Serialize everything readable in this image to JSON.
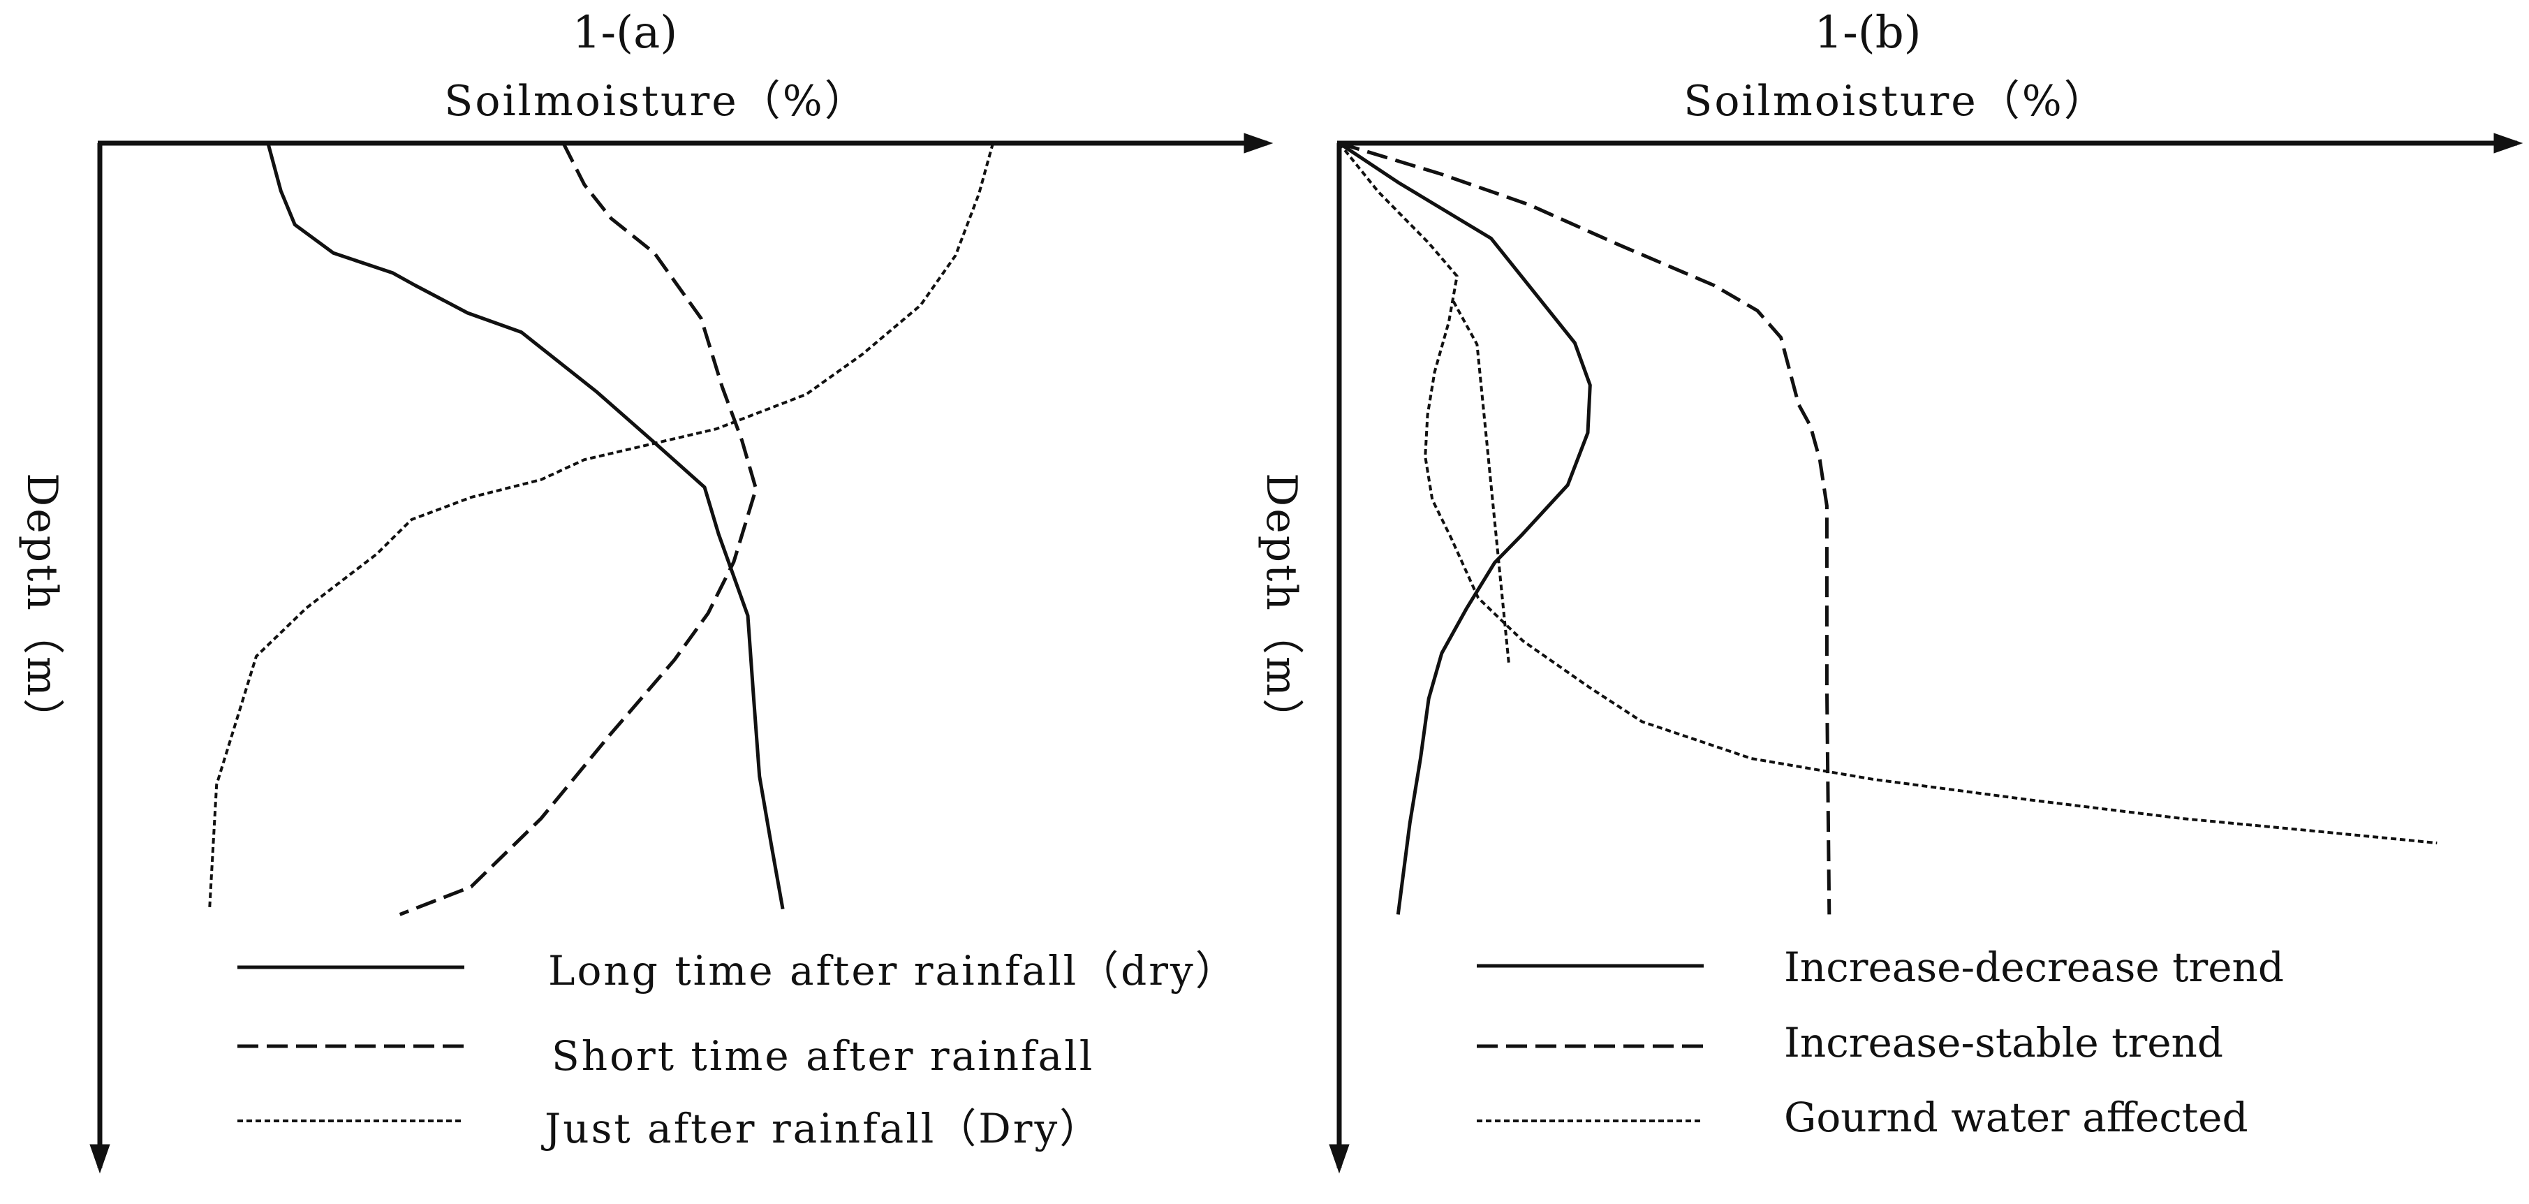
{
  "chart_data": [
    {
      "panel_label": "1-(a)",
      "type": "line",
      "title": "1-(a)",
      "xlabel": "Soilmoisture（%）",
      "ylabel": "Depth（m）",
      "x_axis_position": "top",
      "y_axis_direction": "downward",
      "xlim": [
        0,
        100
      ],
      "ylim": [
        0,
        100
      ],
      "grid": false,
      "legend_position": "bottom",
      "series": [
        {
          "name": "Long time after rainfall（dry）",
          "style": "solid",
          "points": [
            [
              14.4,
              0
            ],
            [
              15.5,
              6.2
            ],
            [
              16.7,
              10.6
            ],
            [
              20,
              14.3
            ],
            [
              25.1,
              16.9
            ],
            [
              27,
              18.5
            ],
            [
              31.5,
              22.1
            ],
            [
              36.1,
              24.6
            ],
            [
              42.5,
              32.3
            ],
            [
              47.3,
              38.7
            ],
            [
              51.8,
              44.8
            ],
            [
              53,
              50.9
            ],
            [
              55.5,
              61.5
            ],
            [
              56,
              72.1
            ],
            [
              56.5,
              82.4
            ],
            [
              57.5,
              91.2
            ],
            [
              58.5,
              99.7
            ]
          ]
        },
        {
          "name": "Short time after rainfall",
          "style": "dashed",
          "points": [
            [
              39.7,
              0
            ],
            [
              41.5,
              5.4
            ],
            [
              43.8,
              9.8
            ],
            [
              47.5,
              14.3
            ],
            [
              51.5,
              22.8
            ],
            [
              53.3,
              31.7
            ],
            [
              55,
              38.7
            ],
            [
              56.2,
              45
            ],
            [
              54.3,
              54.5
            ],
            [
              52.1,
              61.2
            ],
            [
              49.2,
              67.3
            ],
            [
              43.7,
              77
            ],
            [
              37.8,
              87.9
            ],
            [
              31.8,
              96.8
            ],
            [
              25.7,
              100.4
            ]
          ]
        },
        {
          "name": "Just after rainfall（Dry）",
          "style": "dotted",
          "points": [
            [
              76.5,
              0
            ],
            [
              75.3,
              6.6
            ],
            [
              73.3,
              14.6
            ],
            [
              70.3,
              21.1
            ],
            [
              65.3,
              27.5
            ],
            [
              60.5,
              32.7
            ],
            [
              52.8,
              37.2
            ],
            [
              41.5,
              41.2
            ],
            [
              37.8,
              43.8
            ],
            [
              31.8,
              46.1
            ],
            [
              26.7,
              49
            ],
            [
              23.7,
              53.5
            ],
            [
              17.7,
              60.5
            ],
            [
              13.4,
              66.8
            ],
            [
              12.1,
              73.2
            ],
            [
              10,
              83.5
            ],
            [
              9.4,
              99.6
            ]
          ]
        }
      ],
      "legend": [
        {
          "label": "Long time after rainfall（dry）",
          "style": "solid"
        },
        {
          "label": "Short time after rainfall",
          "style": "dashed"
        },
        {
          "label": "Just after rainfall（Dry）",
          "style": "dotted"
        }
      ]
    },
    {
      "panel_label": "1-(b)",
      "type": "line",
      "title": "1-(b)",
      "xlabel": "Soilmoisture（%）",
      "ylabel": "Depth（m）",
      "x_axis_position": "top",
      "y_axis_direction": "downward",
      "xlim": [
        0,
        100
      ],
      "ylim": [
        0,
        100
      ],
      "grid": false,
      "legend_position": "bottom",
      "series": [
        {
          "name": "Increase-decrease trend",
          "style": "solid",
          "points": [
            [
              0,
              0
            ],
            [
              5,
              5.1
            ],
            [
              12.9,
              12.4
            ],
            [
              20,
              26
            ],
            [
              21.3,
              31.5
            ],
            [
              21.1,
              37.7
            ],
            [
              19.4,
              44.5
            ],
            [
              15.5,
              51
            ],
            [
              13.2,
              54.6
            ],
            [
              10.8,
              60.6
            ],
            [
              8.7,
              66.4
            ],
            [
              7.6,
              72.3
            ],
            [
              6.9,
              80.1
            ],
            [
              6,
              88.5
            ],
            [
              5,
              100.4
            ]
          ]
        },
        {
          "name": "Increase-stable trend",
          "style": "dashed",
          "points": [
            [
              0,
              0
            ],
            [
              8.6,
              4
            ],
            [
              16.1,
              8
            ],
            [
              23.7,
              13.2
            ],
            [
              31.8,
              18.5
            ],
            [
              35.5,
              21.8
            ],
            [
              37.5,
              25.3
            ],
            [
              39,
              34
            ],
            [
              40,
              36.8
            ],
            [
              40.8,
              41.2
            ],
            [
              41.4,
              47.2
            ],
            [
              41.4,
              70.6
            ],
            [
              41.6,
              100.4
            ]
          ]
        },
        {
          "name": "Gournd water affected",
          "style": "dotted",
          "points": [
            [
              0,
              0
            ],
            [
              3.3,
              6.3
            ],
            [
              7.6,
              13
            ],
            [
              10,
              17.3
            ],
            [
              9.3,
              23.3
            ],
            [
              8.1,
              29.8
            ],
            [
              7.5,
              35.4
            ],
            [
              7.3,
              40.8
            ],
            [
              7.9,
              46.4
            ],
            [
              9.5,
              51.4
            ],
            [
              11.8,
              59.2
            ],
            [
              15.6,
              64.8
            ],
            [
              21.3,
              70.9
            ],
            [
              25.7,
              75.3
            ],
            [
              35,
              80.1
            ],
            [
              45.3,
              82.8
            ],
            [
              58.7,
              85.5
            ],
            [
              71.5,
              87.9
            ],
            [
              82.5,
              89.5
            ],
            [
              93.2,
              91.1
            ]
          ]
        },
        {
          "name": "",
          "style": "dotted",
          "points": [
            [
              9.7,
              20.6
            ],
            [
              11.7,
              26.2
            ],
            [
              12.9,
              44.6
            ],
            [
              14.4,
              67.7
            ]
          ]
        }
      ],
      "legend": [
        {
          "label": "Increase-decrease trend",
          "style": "solid"
        },
        {
          "label": "Increase-stable trend",
          "style": "dashed"
        },
        {
          "label": "Gournd water affected",
          "style": "dotted"
        }
      ]
    }
  ]
}
